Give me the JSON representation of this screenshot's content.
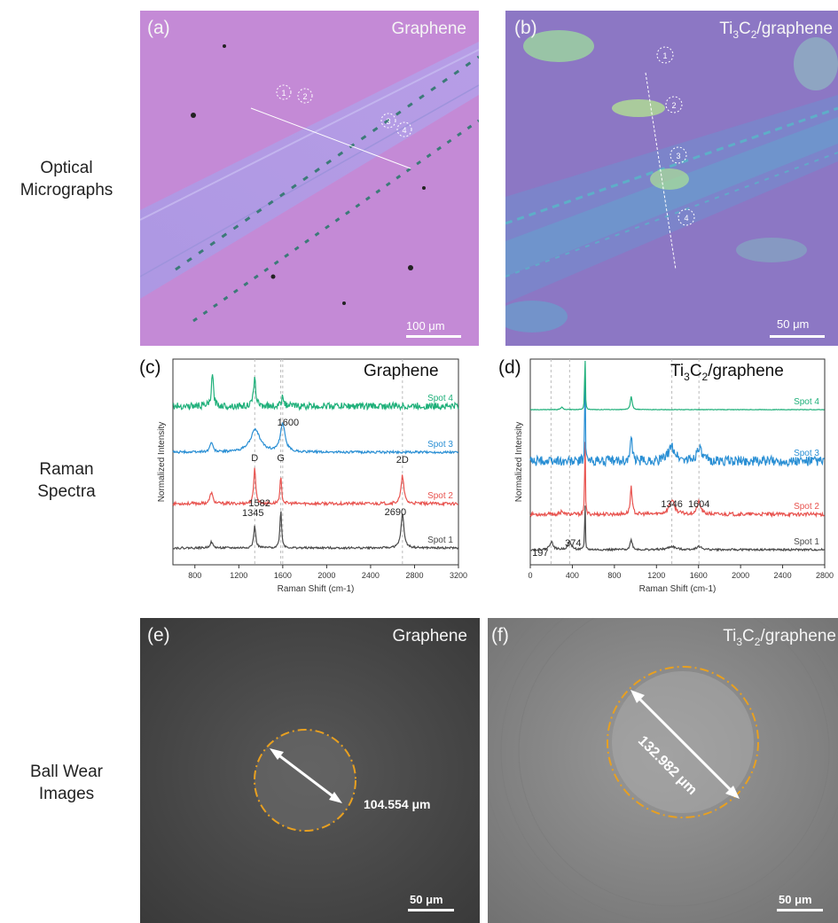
{
  "row_labels": {
    "optical": [
      "Optical",
      "Micrographs"
    ],
    "raman": [
      "Raman",
      "Spectra"
    ],
    "wear": [
      "Ball Wear",
      "Images"
    ]
  },
  "panel_a": {
    "letter": "(a)",
    "title": "Graphene",
    "scale": "100 μm",
    "spots": [
      "1",
      "2",
      "3",
      "4"
    ]
  },
  "panel_b": {
    "letter": "(b)",
    "title_prefix": "Ti",
    "title_sub1": "3",
    "title_mid": "C",
    "title_sub2": "2",
    "title_suffix": "/graphene",
    "scale": "50 μm",
    "spots": [
      "1",
      "2",
      "3",
      "4"
    ]
  },
  "panel_e": {
    "letter": "(e)",
    "title": "Graphene",
    "scale": "50 μm",
    "diameter": "104.554 μm"
  },
  "panel_f": {
    "letter": "(f)",
    "title_prefix": "Ti",
    "title_sub1": "3",
    "title_mid": "C",
    "title_sub2": "2",
    "title_suffix": "/graphene",
    "scale": "50 μm",
    "diameter": "132.982 μm"
  },
  "colors": {
    "spot1": "#4a4a4a",
    "spot2": "#e8534f",
    "spot3": "#2a8fd4",
    "spot4": "#1fb07a",
    "micrograph_a": "#c48ad6",
    "micrograph_b": "#8c77c4",
    "wear_ring": "#e8a020"
  },
  "chart_data": [
    {
      "type": "line",
      "letter": "(c)",
      "title": "Graphene",
      "xlabel": "Raman Shift (cm-1)",
      "ylabel": "Normalized Intensity",
      "xlim": [
        600,
        3200
      ],
      "xticks": [
        800,
        1200,
        1600,
        2000,
        2400,
        2800,
        3200
      ],
      "reference_lines": [
        1345,
        1582,
        1600,
        2690
      ],
      "annotations": [
        {
          "text": "D",
          "x": 1345
        },
        {
          "text": "G",
          "x": 1582
        },
        {
          "text": "1600",
          "x": 1600
        },
        {
          "text": "2D",
          "x": 2690
        },
        {
          "text": "1345",
          "x": 1345
        },
        {
          "text": "1582",
          "x": 1582
        },
        {
          "text": "2690",
          "x": 2690
        }
      ],
      "series": [
        {
          "name": "Spot 1",
          "color": "#4a4a4a",
          "peaks": [
            [
              950,
              0.15,
              30
            ],
            [
              1345,
              0.55,
              22
            ],
            [
              1582,
              0.95,
              18
            ],
            [
              2690,
              0.85,
              32
            ]
          ]
        },
        {
          "name": "Spot 2",
          "color": "#e8534f",
          "peaks": [
            [
              950,
              0.3,
              30
            ],
            [
              1345,
              1.0,
              20
            ],
            [
              1582,
              0.7,
              18
            ],
            [
              2690,
              0.75,
              30
            ]
          ]
        },
        {
          "name": "Spot 3",
          "color": "#2a8fd4",
          "peaks": [
            [
              950,
              0.25,
              30
            ],
            [
              1350,
              0.55,
              110
            ],
            [
              1600,
              0.7,
              50
            ]
          ]
        },
        {
          "name": "Spot 4",
          "color": "#1fb07a",
          "peaks": [
            [
              960,
              1.0,
              22
            ],
            [
              1345,
              0.85,
              25
            ],
            [
              1600,
              0.4,
              20
            ]
          ]
        }
      ]
    },
    {
      "type": "line",
      "letter": "(d)",
      "title_prefix": "Ti",
      "title_sub1": "3",
      "title_mid": "C",
      "title_sub2": "2",
      "title_suffix": "/graphene",
      "xlabel": "Raman Shift (cm-1)",
      "ylabel": "Normalized Intensity",
      "xlim": [
        0,
        2800
      ],
      "xticks": [
        0,
        400,
        800,
        1200,
        1600,
        2000,
        2400,
        2800
      ],
      "reference_lines": [
        197,
        374,
        1346,
        1604
      ],
      "annotations": [
        {
          "text": "197",
          "x": 197
        },
        {
          "text": "374",
          "x": 374
        },
        {
          "text": "1346",
          "x": 1346
        },
        {
          "text": "1604",
          "x": 1604
        }
      ],
      "series": [
        {
          "name": "Spot 1",
          "color": "#4a4a4a",
          "peaks": [
            [
              200,
              0.2,
              40
            ],
            [
              374,
              0.2,
              40
            ],
            [
              520,
              1.6,
              6
            ],
            [
              960,
              0.25,
              25
            ],
            [
              1346,
              0.08,
              80
            ],
            [
              1604,
              0.08,
              60
            ]
          ]
        },
        {
          "name": "Spot 2",
          "color": "#e8534f",
          "peaks": [
            [
              300,
              0.12,
              20
            ],
            [
              520,
              3.0,
              6
            ],
            [
              960,
              0.8,
              20
            ],
            [
              1346,
              0.4,
              60
            ],
            [
              1604,
              0.35,
              40
            ]
          ]
        },
        {
          "name": "Spot 3",
          "color": "#2a8fd4",
          "peaks": [
            [
              520,
              3.0,
              6
            ],
            [
              960,
              0.6,
              20
            ],
            [
              1346,
              0.35,
              80
            ],
            [
              1604,
              0.35,
              50
            ]
          ]
        },
        {
          "name": "Spot 4",
          "color": "#1fb07a",
          "peaks": [
            [
              300,
              0.1,
              20
            ],
            [
              520,
              3.0,
              6
            ],
            [
              960,
              0.5,
              20
            ]
          ]
        }
      ]
    }
  ]
}
